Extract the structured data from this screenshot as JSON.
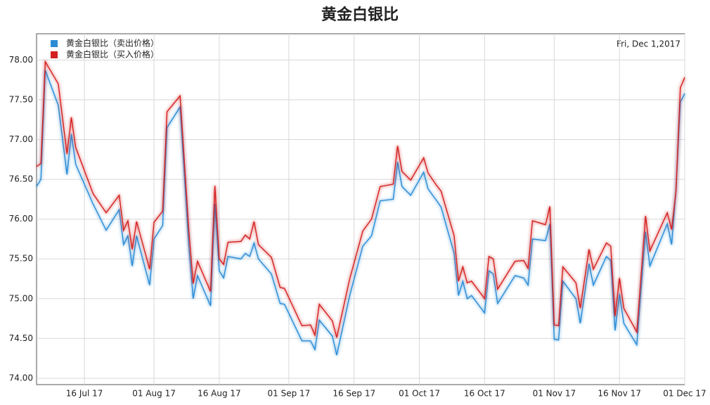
{
  "chart_data": {
    "type": "line",
    "title": "黄金白银比",
    "date_label": "Fri, Dec 1,2017",
    "x": [
      "2017-07-05",
      "2017-07-06",
      "2017-07-07",
      "2017-07-10",
      "2017-07-12",
      "2017-07-13",
      "2017-07-14",
      "2017-07-18",
      "2017-07-20",
      "2017-07-21",
      "2017-07-24",
      "2017-07-25",
      "2017-07-26",
      "2017-07-27",
      "2017-07-28",
      "2017-07-31",
      "2017-08-01",
      "2017-08-03",
      "2017-08-04",
      "2017-08-07",
      "2017-08-09",
      "2017-08-10",
      "2017-08-11",
      "2017-08-14",
      "2017-08-15",
      "2017-08-16",
      "2017-08-17",
      "2017-08-18",
      "2017-08-21",
      "2017-08-22",
      "2017-08-23",
      "2017-08-24",
      "2017-08-25",
      "2017-08-28",
      "2017-08-30",
      "2017-08-31",
      "2017-09-04",
      "2017-09-06",
      "2017-09-07",
      "2017-09-08",
      "2017-09-11",
      "2017-09-12",
      "2017-09-15",
      "2017-09-18",
      "2017-09-20",
      "2017-09-22",
      "2017-09-25",
      "2017-09-26",
      "2017-09-27",
      "2017-09-29",
      "2017-10-02",
      "2017-10-03",
      "2017-10-05",
      "2017-10-06",
      "2017-10-09",
      "2017-10-10",
      "2017-10-11",
      "2017-10-12",
      "2017-10-13",
      "2017-10-16",
      "2017-10-17",
      "2017-10-18",
      "2017-10-19",
      "2017-10-23",
      "2017-10-25",
      "2017-10-26",
      "2017-10-27",
      "2017-10-30",
      "2017-10-31",
      "2017-11-01",
      "2017-11-02",
      "2017-11-03",
      "2017-11-06",
      "2017-11-07",
      "2017-11-09",
      "2017-11-10",
      "2017-11-13",
      "2017-11-14",
      "2017-11-15",
      "2017-11-16",
      "2017-11-17",
      "2017-11-20",
      "2017-11-22",
      "2017-11-23",
      "2017-11-27",
      "2017-11-28",
      "2017-11-29",
      "2017-11-30",
      "2017-12-01"
    ],
    "series": [
      {
        "name": "黄金白银比（卖出价格）",
        "color": "#2b8cd6",
        "values": [
          76.41,
          76.5,
          77.87,
          77.43,
          76.56,
          77.07,
          76.69,
          76.19,
          75.97,
          75.86,
          76.12,
          75.68,
          75.79,
          75.41,
          75.79,
          75.17,
          75.75,
          75.92,
          77.15,
          77.41,
          75.66,
          75.0,
          75.29,
          74.91,
          76.19,
          75.35,
          75.26,
          75.53,
          75.5,
          75.57,
          75.53,
          75.7,
          75.5,
          75.31,
          74.94,
          74.93,
          74.47,
          74.47,
          74.36,
          74.73,
          74.53,
          74.29,
          75.04,
          75.66,
          75.79,
          76.23,
          76.25,
          76.72,
          76.41,
          76.3,
          76.59,
          76.38,
          76.23,
          76.15,
          75.57,
          75.04,
          75.22,
          75.0,
          75.04,
          74.82,
          75.35,
          75.31,
          74.94,
          75.29,
          75.26,
          75.17,
          75.75,
          75.73,
          75.94,
          74.49,
          74.48,
          75.22,
          75.0,
          74.69,
          75.44,
          75.17,
          75.53,
          75.48,
          74.6,
          75.06,
          74.69,
          74.42,
          75.84,
          75.41,
          75.94,
          75.68,
          76.37,
          77.47,
          77.58
        ]
      },
      {
        "name": "黄金白银比（买入价格）",
        "color": "#d42020",
        "values": [
          76.66,
          76.7,
          77.98,
          77.7,
          76.82,
          77.28,
          76.9,
          76.32,
          76.16,
          76.08,
          76.3,
          75.86,
          75.98,
          75.62,
          75.97,
          75.37,
          75.96,
          76.1,
          77.35,
          77.55,
          75.86,
          75.19,
          75.47,
          75.09,
          76.42,
          75.5,
          75.43,
          75.71,
          75.72,
          75.8,
          75.75,
          75.97,
          75.68,
          75.52,
          75.14,
          75.13,
          74.66,
          74.67,
          74.54,
          74.93,
          74.72,
          74.51,
          75.25,
          75.85,
          76.0,
          76.41,
          76.44,
          76.92,
          76.6,
          76.49,
          76.77,
          76.58,
          76.42,
          76.35,
          75.79,
          75.22,
          75.4,
          75.2,
          75.22,
          75.0,
          75.53,
          75.5,
          75.12,
          75.47,
          75.48,
          75.38,
          75.98,
          75.93,
          76.16,
          74.67,
          74.66,
          75.4,
          75.2,
          74.88,
          75.62,
          75.37,
          75.7,
          75.66,
          74.78,
          75.26,
          74.88,
          74.58,
          76.04,
          75.6,
          76.08,
          75.87,
          76.35,
          77.65,
          77.78
        ]
      }
    ],
    "xlim": [
      "2017-07-05",
      "2017-12-01"
    ],
    "xticks": [
      {
        "value": "2017-07-16",
        "label": "16 Jul 17"
      },
      {
        "value": "2017-08-01",
        "label": "01 Aug 17"
      },
      {
        "value": "2017-08-16",
        "label": "16 Aug 17"
      },
      {
        "value": "2017-09-01",
        "label": "01 Sep 17"
      },
      {
        "value": "2017-09-16",
        "label": "16 Sep 17"
      },
      {
        "value": "2017-10-01",
        "label": "01 Oct 17"
      },
      {
        "value": "2017-10-16",
        "label": "16 Oct 17"
      },
      {
        "value": "2017-11-01",
        "label": "01 Nov 17"
      },
      {
        "value": "2017-11-16",
        "label": "16 Nov 17"
      },
      {
        "value": "2017-12-01",
        "label": "01 Dec 17"
      }
    ],
    "ylim": [
      73.92,
      78.33
    ],
    "yticks": [
      {
        "value": 74,
        "label": "74.00"
      },
      {
        "value": 74.5,
        "label": "74.50"
      },
      {
        "value": 75,
        "label": "75.00"
      },
      {
        "value": 75.5,
        "label": "75.50"
      },
      {
        "value": 76,
        "label": "76.00"
      },
      {
        "value": 76.5,
        "label": "76.50"
      },
      {
        "value": 77,
        "label": "77.00"
      },
      {
        "value": 77.5,
        "label": "77.50"
      },
      {
        "value": 78,
        "label": "78.00"
      }
    ],
    "grid": true,
    "legend": "top-left"
  }
}
